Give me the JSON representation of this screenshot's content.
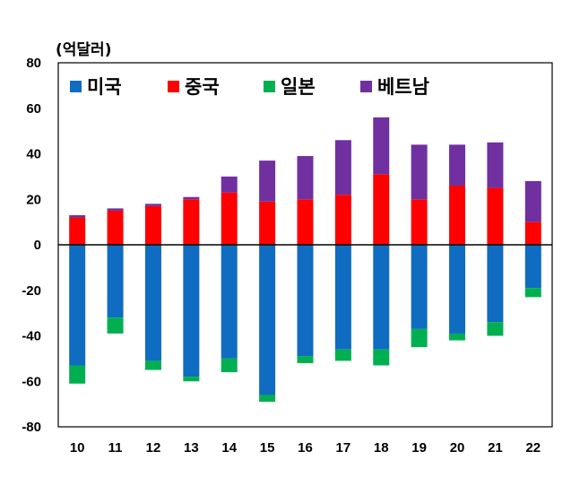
{
  "chart_data": {
    "type": "bar",
    "stacked": true,
    "unit_label": "(억달러)",
    "categories": [
      "10",
      "11",
      "12",
      "13",
      "14",
      "15",
      "16",
      "17",
      "18",
      "19",
      "20",
      "21",
      "22"
    ],
    "ylim": [
      -80,
      80
    ],
    "yticks": [
      80,
      60,
      40,
      20,
      0,
      -20,
      -40,
      -60,
      -80
    ],
    "grid": false,
    "legend": "top-left",
    "series": [
      {
        "name": "미국",
        "color": "#0f6cc0",
        "values": [
          -53,
          -32,
          -51,
          -58,
          -50,
          -66,
          -49,
          -46,
          -46,
          -37,
          -39,
          -34,
          -19
        ]
      },
      {
        "name": "중국",
        "color": "#ff0000",
        "values": [
          12,
          15,
          17,
          20,
          23,
          19,
          20,
          22,
          31,
          20,
          26,
          25,
          10
        ]
      },
      {
        "name": "일본",
        "color": "#00b050",
        "values": [
          -8,
          -7,
          -4,
          -2,
          -6,
          -3,
          -3,
          -5,
          -7,
          -8,
          -3,
          -6,
          -4
        ]
      },
      {
        "name": "베트남",
        "color": "#7030a0",
        "values": [
          1,
          1,
          1,
          1,
          7,
          18,
          19,
          24,
          25,
          24,
          18,
          20,
          18
        ]
      }
    ]
  }
}
